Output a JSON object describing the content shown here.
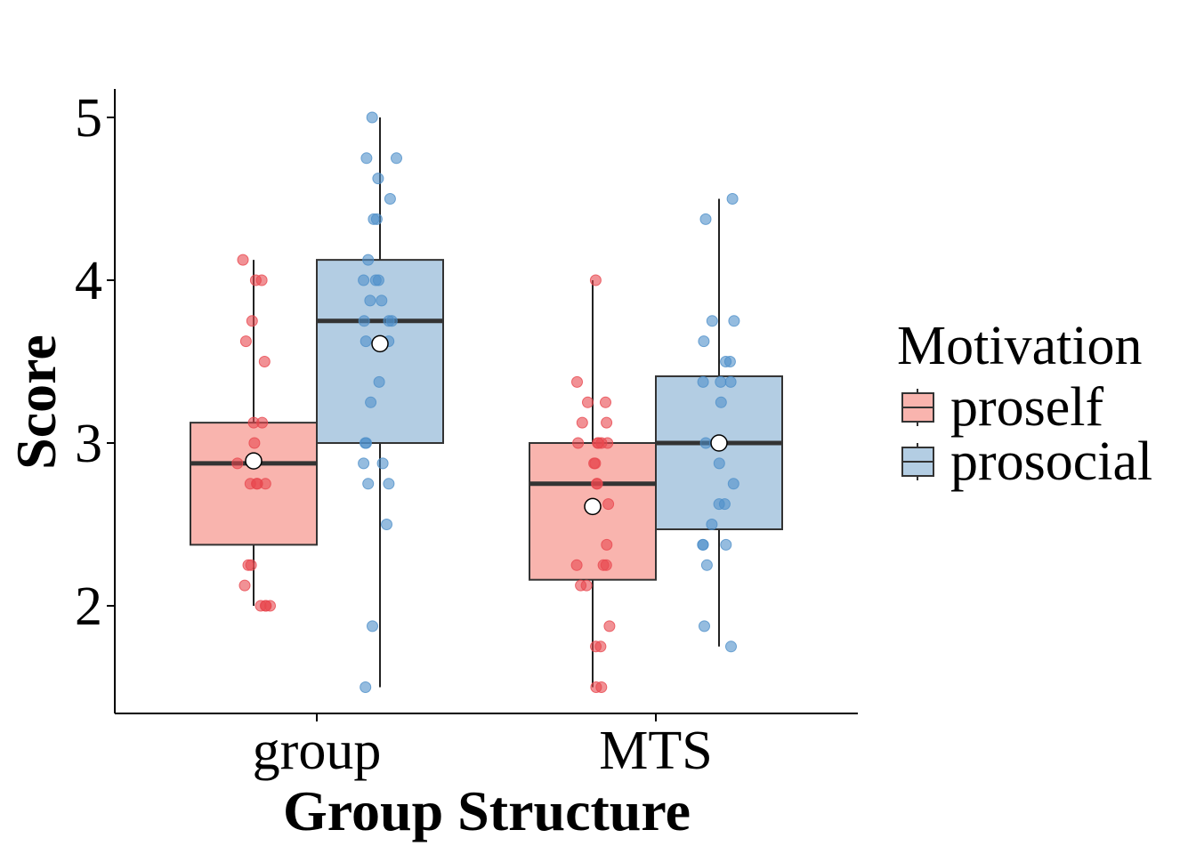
{
  "chart_data": {
    "type": "box",
    "xlabel": "Group Structure",
    "ylabel": "Score",
    "ylim": [
      1.33,
      5.17
    ],
    "yticks": [
      2,
      3,
      4,
      5
    ],
    "categories": [
      "group",
      "MTS"
    ],
    "legend": {
      "title": "Motivation",
      "placement": "right"
    },
    "grid": false,
    "series": [
      {
        "name": "proself",
        "fill": "#f9b4ae",
        "point_color": "#e8474f",
        "boxes": [
          {
            "category": "group",
            "min": 2.0,
            "q1": 2.375,
            "median": 2.875,
            "q3": 3.125,
            "max": 4.125,
            "mean": 2.89,
            "points": [
              4.125,
              4.0,
              4.0,
              3.75,
              3.625,
              3.5,
              3.125,
              3.125,
              3.0,
              2.875,
              2.875,
              2.75,
              2.75,
              2.75,
              2.75,
              2.25,
              2.25,
              2.125,
              2.0,
              2.0,
              2.0,
              2.0
            ]
          },
          {
            "category": "MTS",
            "min": 1.5,
            "q1": 2.16,
            "median": 2.75,
            "q3": 3.0,
            "max": 4.0,
            "mean": 2.61,
            "points": [
              4.0,
              3.375,
              3.25,
              3.25,
              3.125,
              3.125,
              3.0,
              3.0,
              3.0,
              3.0,
              3.0,
              2.875,
              2.875,
              2.75,
              2.75,
              2.625,
              2.375,
              2.25,
              2.25,
              2.25,
              2.125,
              2.125,
              1.875,
              1.75,
              1.75,
              1.5,
              1.5
            ]
          }
        ]
      },
      {
        "name": "prosocial",
        "fill": "#b3cde3",
        "point_color": "#4f90c9",
        "boxes": [
          {
            "category": "group",
            "min": 1.5,
            "q1": 3.0,
            "median": 3.75,
            "q3": 4.125,
            "max": 5.0,
            "mean": 3.61,
            "points": [
              5.0,
              4.75,
              4.75,
              4.625,
              4.5,
              4.375,
              4.375,
              4.125,
              4.0,
              4.0,
              4.0,
              3.875,
              3.875,
              3.75,
              3.75,
              3.75,
              3.625,
              3.625,
              3.375,
              3.25,
              3.0,
              3.0,
              2.875,
              2.875,
              2.75,
              2.75,
              2.5,
              1.875,
              1.5
            ]
          },
          {
            "category": "MTS",
            "min": 1.75,
            "q1": 2.47,
            "median": 3.0,
            "q3": 3.41,
            "max": 4.5,
            "mean": 3.0,
            "points": [
              4.5,
              4.375,
              3.75,
              3.75,
              3.625,
              3.5,
              3.5,
              3.375,
              3.375,
              3.375,
              3.25,
              3.0,
              3.0,
              2.875,
              2.75,
              2.625,
              2.625,
              2.5,
              2.375,
              2.375,
              2.375,
              2.25,
              1.875,
              1.75
            ]
          }
        ]
      }
    ]
  }
}
